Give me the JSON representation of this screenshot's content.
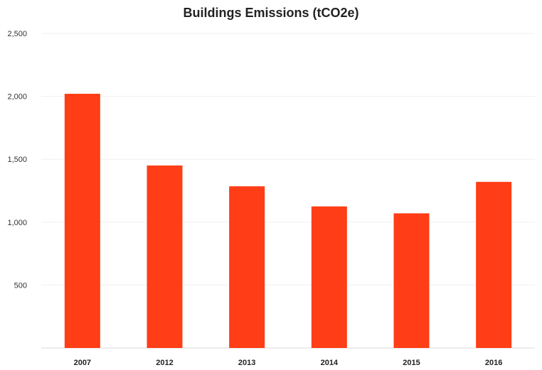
{
  "chart_data": {
    "type": "bar",
    "title": "Buildings Emissions (tCO2e)",
    "xlabel": "",
    "ylabel": "",
    "categories": [
      "2007",
      "2012",
      "2013",
      "2014",
      "2015",
      "2016"
    ],
    "values": [
      2020,
      1450,
      1285,
      1125,
      1070,
      1320
    ],
    "ylim": [
      0,
      2500
    ],
    "yticks": [
      0,
      500,
      1000,
      1500,
      2000,
      2500
    ],
    "ytick_labels": [
      "",
      "500",
      "1,000",
      "1,500",
      "2,000",
      "2,500"
    ],
    "grid": true,
    "legend": "none",
    "bar_color": "#ff3d16"
  }
}
